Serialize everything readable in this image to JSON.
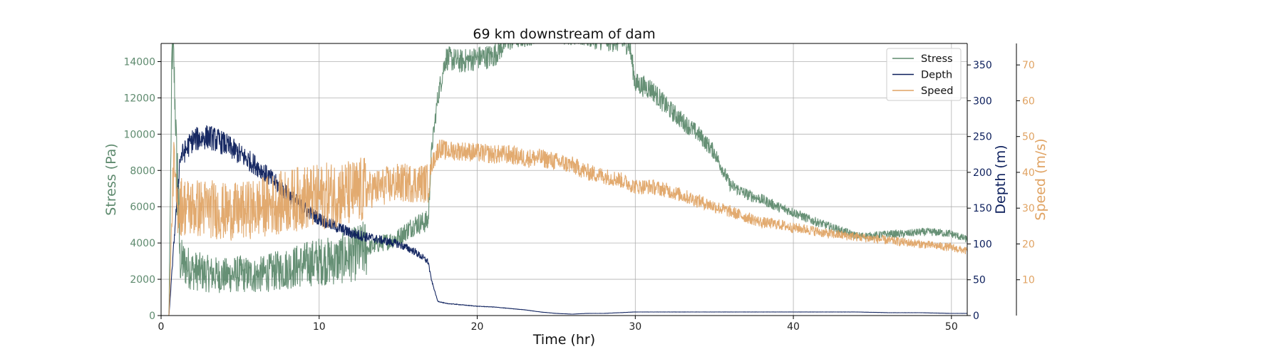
{
  "chart_data": {
    "type": "line",
    "title": "69 km downstream of dam",
    "xlabel": "Time (hr)",
    "xlim": [
      0,
      51
    ],
    "xticks": [
      "0",
      "10",
      "20",
      "30",
      "40",
      "50"
    ],
    "grid": true,
    "legend_position": "top-right",
    "axes": {
      "stress": {
        "ylabel": "Stress (Pa)",
        "ylim": [
          0,
          15000
        ],
        "color": "#5e8a6e",
        "ticks": [
          "0",
          "2000",
          "4000",
          "6000",
          "8000",
          "10000",
          "12000",
          "14000"
        ]
      },
      "depth": {
        "ylabel": "Depth (m)",
        "ylim": [
          0,
          380
        ],
        "color": "#0b1e5b",
        "ticks": [
          "0",
          "50",
          "100",
          "150",
          "200",
          "250",
          "300",
          "350"
        ]
      },
      "speed": {
        "ylabel": "Speed (m/s)",
        "ylim": [
          0,
          76
        ],
        "color": "#e0a363",
        "ticks": [
          "10",
          "20",
          "30",
          "40",
          "50",
          "60",
          "70"
        ]
      }
    },
    "series": [
      {
        "name": "Stress",
        "axis": "stress",
        "color": "#5e8a6e",
        "noise": 0.12,
        "x": [
          0,
          0.5,
          0.7,
          0.8,
          1.2,
          2,
          3,
          4,
          5,
          6,
          7,
          8,
          9,
          10,
          11,
          12,
          13,
          14,
          15,
          16,
          16.9,
          17.1,
          17.5,
          18,
          19,
          20,
          21,
          22,
          23,
          24,
          25,
          26,
          27,
          28,
          29,
          29.6,
          30,
          31,
          32,
          33,
          34,
          35,
          36,
          37,
          38,
          39,
          40,
          41,
          42,
          43,
          44,
          45,
          46,
          47,
          48,
          49,
          50,
          51
        ],
        "y": [
          0,
          0,
          15000,
          14000,
          3000,
          2500,
          2300,
          2200,
          2300,
          2200,
          2400,
          2600,
          2800,
          3000,
          3000,
          3300,
          3700,
          4000,
          4300,
          5000,
          5200,
          9000,
          12000,
          14200,
          14000,
          14200,
          14300,
          15300,
          15500,
          15800,
          15800,
          15600,
          15500,
          15300,
          15200,
          15100,
          12800,
          12500,
          11500,
          10700,
          10000,
          9000,
          7200,
          6700,
          6400,
          6000,
          5700,
          5300,
          5000,
          4700,
          4400,
          4400,
          4500,
          4500,
          4600,
          4600,
          4500,
          4200
        ]
      },
      {
        "name": "Depth",
        "axis": "depth",
        "color": "#0b1e5b",
        "noise": 0.06,
        "x": [
          0,
          0.5,
          0.9,
          1.2,
          2,
          3,
          4,
          5,
          6,
          7,
          8,
          9,
          10,
          11,
          12,
          13,
          14,
          15,
          16,
          16.9,
          17.1,
          17.5,
          18,
          19,
          20,
          21,
          22,
          23,
          24,
          25,
          26,
          27,
          28,
          29,
          30,
          32,
          34,
          36,
          38,
          40,
          42,
          44,
          46,
          48,
          50,
          51
        ],
        "y": [
          0,
          0,
          130,
          220,
          245,
          250,
          240,
          225,
          210,
          190,
          170,
          150,
          135,
          125,
          115,
          110,
          105,
          100,
          90,
          75,
          50,
          20,
          17,
          15,
          13,
          12,
          10,
          8,
          5,
          3,
          2,
          3,
          3,
          4,
          5,
          5,
          5,
          5,
          5,
          5,
          5,
          5,
          4,
          4,
          3,
          3
        ]
      },
      {
        "name": "Speed",
        "axis": "speed",
        "color": "#e0a363",
        "noise": 0.15,
        "x": [
          0,
          0.5,
          0.8,
          1,
          2,
          3,
          4,
          5,
          6,
          7,
          8,
          9,
          10,
          11,
          12,
          13,
          14,
          15,
          16,
          16.9,
          17.1,
          17.6,
          18,
          19,
          20,
          21,
          22,
          23,
          24,
          25,
          26,
          27,
          28,
          29,
          30,
          31,
          32,
          33,
          34,
          35,
          36,
          37,
          38,
          39,
          40,
          41,
          42,
          43,
          44,
          45,
          46,
          47,
          48,
          49,
          50,
          51
        ],
        "y": [
          0,
          0,
          44,
          31,
          30,
          30,
          29,
          29,
          30,
          31,
          32,
          33,
          33,
          34,
          34,
          35,
          36,
          37,
          37,
          37,
          42,
          47,
          46,
          46,
          45.5,
          45,
          45,
          44,
          44,
          43,
          42,
          40,
          39,
          38,
          36,
          36,
          35,
          33.5,
          32,
          30.5,
          29,
          27.5,
          26,
          25.5,
          24.5,
          24,
          23,
          22.5,
          22,
          21.5,
          21,
          20.5,
          20,
          19.5,
          19,
          18
        ]
      }
    ]
  }
}
